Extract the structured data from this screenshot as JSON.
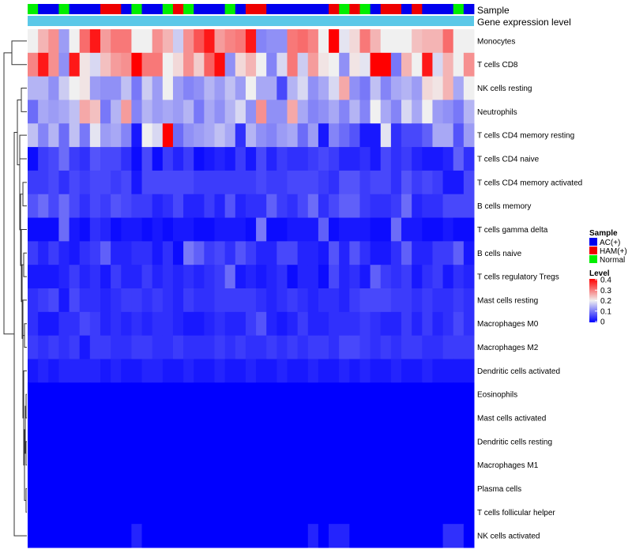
{
  "chart_data": {
    "type": "heatmap",
    "title": "",
    "annotation_tracks": [
      {
        "label": "Sample"
      },
      {
        "label": "Gene expression level"
      }
    ],
    "sample_groups": [
      "Normal",
      "AC(+)",
      "AC(+)",
      "Normal",
      "AC(+)",
      "AC(+)",
      "AC(+)",
      "HAM(+)",
      "HAM(+)",
      "AC(+)",
      "Normal",
      "AC(+)",
      "AC(+)",
      "Normal",
      "HAM(+)",
      "Normal",
      "AC(+)",
      "AC(+)",
      "AC(+)",
      "Normal",
      "AC(+)",
      "HAM(+)",
      "HAM(+)",
      "AC(+)",
      "AC(+)",
      "AC(+)",
      "AC(+)",
      "AC(+)",
      "AC(+)",
      "HAM(+)",
      "Normal",
      "HAM(+)",
      "Normal",
      "AC(+)",
      "HAM(+)",
      "HAM(+)",
      "AC(+)",
      "HAM(+)",
      "AC(+)",
      "AC(+)",
      "AC(+)",
      "Normal",
      "AC(+)"
    ],
    "rows": [
      {
        "label": "Monocytes",
        "values": [
          0.2,
          0.25,
          0.28,
          0.13,
          0.2,
          0.31,
          0.38,
          0.27,
          0.3,
          0.3,
          0.2,
          0.2,
          0.28,
          0.25,
          0.17,
          0.28,
          0.33,
          0.38,
          0.27,
          0.29,
          0.3,
          0.38,
          0.11,
          0.12,
          0.12,
          0.3,
          0.31,
          0.29,
          0.2,
          0.4,
          0.19,
          0.22,
          0.3,
          0.25,
          0.2,
          0.2,
          0.2,
          0.24,
          0.25,
          0.25,
          0.31,
          0.2,
          0.2
        ]
      },
      {
        "label": "T cells CD8",
        "values": [
          0.29,
          0.38,
          0.28,
          0.12,
          0.38,
          0.21,
          0.18,
          0.24,
          0.27,
          0.28,
          0.4,
          0.3,
          0.3,
          0.2,
          0.22,
          0.28,
          0.23,
          0.32,
          0.39,
          0.12,
          0.22,
          0.25,
          0.2,
          0.11,
          0.18,
          0.3,
          0.17,
          0.27,
          0.21,
          0.2,
          0.12,
          0.21,
          0.19,
          0.4,
          0.4,
          0.1,
          0.25,
          0.2,
          0.38,
          0.18,
          0.25,
          0.2,
          0.28
        ]
      },
      {
        "label": "NK cells resting",
        "values": [
          0.15,
          0.15,
          0.12,
          0.17,
          0.2,
          0.21,
          0.13,
          0.12,
          0.12,
          0.16,
          0.1,
          0.17,
          0.13,
          0.2,
          0.13,
          0.11,
          0.12,
          0.15,
          0.13,
          0.16,
          0.13,
          0.2,
          0.14,
          0.14,
          0.06,
          0.15,
          0.18,
          0.12,
          0.14,
          0.18,
          0.26,
          0.12,
          0.1,
          0.16,
          0.11,
          0.14,
          0.15,
          0.13,
          0.22,
          0.21,
          0.25,
          0.14,
          0.2
        ]
      },
      {
        "label": "Neutrophils",
        "values": [
          0.09,
          0.14,
          0.13,
          0.14,
          0.16,
          0.26,
          0.24,
          0.1,
          0.15,
          0.27,
          0.11,
          0.15,
          0.13,
          0.14,
          0.13,
          0.15,
          0.1,
          0.14,
          0.12,
          0.15,
          0.18,
          0.12,
          0.28,
          0.12,
          0.12,
          0.26,
          0.14,
          0.11,
          0.12,
          0.14,
          0.11,
          0.15,
          0.11,
          0.2,
          0.14,
          0.11,
          0.18,
          0.14,
          0.2,
          0.13,
          0.12,
          0.1,
          0.15
        ]
      },
      {
        "label": "T cells CD4 memory resting",
        "values": [
          0.16,
          0.11,
          0.15,
          0.09,
          0.16,
          0.1,
          0.19,
          0.13,
          0.14,
          0.11,
          0.02,
          0.2,
          0.18,
          0.4,
          0.09,
          0.12,
          0.13,
          0.14,
          0.16,
          0.14,
          0.04,
          0.15,
          0.12,
          0.11,
          0.13,
          0.14,
          0.09,
          0.13,
          0.02,
          0.11,
          0.09,
          0.07,
          0.02,
          0.02,
          0.19,
          0.04,
          0.06,
          0.06,
          0.08,
          0.14,
          0.14,
          0.07,
          0.13
        ]
      },
      {
        "label": "T cells CD4 naive",
        "values": [
          0.01,
          0.05,
          0.06,
          0.09,
          0.05,
          0.04,
          0.07,
          0.06,
          0.06,
          0.04,
          0.01,
          0.06,
          0.01,
          0.05,
          0.03,
          0.05,
          0.01,
          0.02,
          0.03,
          0.02,
          0.05,
          0.02,
          0.06,
          0.03,
          0.05,
          0.04,
          0.04,
          0.05,
          0.06,
          0.05,
          0.03,
          0.03,
          0.04,
          0.02,
          0.06,
          0.04,
          0.05,
          0.03,
          0.02,
          0.02,
          0.03,
          0.08,
          0.04
        ]
      },
      {
        "label": "T cells CD4 memory activated",
        "values": [
          0.05,
          0.05,
          0.06,
          0.04,
          0.06,
          0.05,
          0.06,
          0.06,
          0.05,
          0.06,
          0.02,
          0.06,
          0.06,
          0.06,
          0.06,
          0.06,
          0.05,
          0.05,
          0.05,
          0.05,
          0.05,
          0.05,
          0.06,
          0.05,
          0.05,
          0.06,
          0.06,
          0.06,
          0.05,
          0.04,
          0.07,
          0.07,
          0.05,
          0.06,
          0.06,
          0.04,
          0.07,
          0.05,
          0.06,
          0.05,
          0.02,
          0.02,
          0.06
        ]
      },
      {
        "label": "B cells memory",
        "values": [
          0.07,
          0.09,
          0.06,
          0.09,
          0.06,
          0.04,
          0.06,
          0.05,
          0.07,
          0.06,
          0.05,
          0.05,
          0.03,
          0.04,
          0.06,
          0.03,
          0.03,
          0.05,
          0.03,
          0.07,
          0.03,
          0.04,
          0.04,
          0.08,
          0.05,
          0.04,
          0.06,
          0.09,
          0.04,
          0.06,
          0.08,
          0.08,
          0.05,
          0.04,
          0.04,
          0.05,
          0.09,
          0.03,
          0.04,
          0.04,
          0.06,
          0.06,
          0.06
        ]
      },
      {
        "label": "T cells gamma delta",
        "values": [
          0.01,
          0.01,
          0.01,
          0.09,
          0.02,
          0.01,
          0.04,
          0.03,
          0.01,
          0.02,
          0.02,
          0.01,
          0.02,
          0.01,
          0.02,
          0.02,
          0.01,
          0.01,
          0.02,
          0.02,
          0.02,
          0.01,
          0.1,
          0.01,
          0.01,
          0.02,
          0.02,
          0.02,
          0.08,
          0.01,
          0.02,
          0.02,
          0.02,
          0.01,
          0.01,
          0.09,
          0.02,
          0.02,
          0.01,
          0.01,
          0.02,
          0.01,
          0.01
        ]
      },
      {
        "label": "B cells naive",
        "values": [
          0.05,
          0.03,
          0.05,
          0.03,
          0.02,
          0.04,
          0.05,
          0.08,
          0.03,
          0.03,
          0.04,
          0.04,
          0.02,
          0.04,
          0.01,
          0.1,
          0.08,
          0.05,
          0.06,
          0.04,
          0.07,
          0.05,
          0.03,
          0.03,
          0.06,
          0.06,
          0.03,
          0.03,
          0.02,
          0.07,
          0.03,
          0.07,
          0.04,
          0.02,
          0.02,
          0.04,
          0.08,
          0.03,
          0.03,
          0.05,
          0.05,
          0.08,
          0.02
        ]
      },
      {
        "label": "T cells regulatory  Tregs",
        "values": [
          0.02,
          0.02,
          0.02,
          0.03,
          0.05,
          0.03,
          0.04,
          0.02,
          0.05,
          0.03,
          0.03,
          0.05,
          0.03,
          0.04,
          0.03,
          0.04,
          0.03,
          0.04,
          0.05,
          0.09,
          0.02,
          0.03,
          0.02,
          0.03,
          0.04,
          0.01,
          0.03,
          0.03,
          0.01,
          0.06,
          0.03,
          0.04,
          0.02,
          0.08,
          0.05,
          0.04,
          0.05,
          0.02,
          0.04,
          0.05,
          0.02,
          0.04,
          0.03
        ]
      },
      {
        "label": "Mast cells resting",
        "values": [
          0.04,
          0.05,
          0.06,
          0.02,
          0.06,
          0.04,
          0.04,
          0.03,
          0.04,
          0.05,
          0.05,
          0.04,
          0.05,
          0.04,
          0.03,
          0.05,
          0.04,
          0.04,
          0.05,
          0.05,
          0.05,
          0.05,
          0.04,
          0.03,
          0.04,
          0.05,
          0.04,
          0.03,
          0.04,
          0.04,
          0.03,
          0.05,
          0.06,
          0.06,
          0.06,
          0.05,
          0.05,
          0.04,
          0.05,
          0.04,
          0.04,
          0.05,
          0.04
        ]
      },
      {
        "label": "Macrophages M0",
        "values": [
          0.04,
          0.02,
          0.02,
          0.04,
          0.04,
          0.06,
          0.05,
          0.03,
          0.04,
          0.03,
          0.04,
          0.03,
          0.04,
          0.04,
          0.03,
          0.02,
          0.02,
          0.03,
          0.04,
          0.03,
          0.03,
          0.05,
          0.07,
          0.03,
          0.02,
          0.03,
          0.05,
          0.03,
          0.03,
          0.04,
          0.04,
          0.04,
          0.05,
          0.04,
          0.03,
          0.03,
          0.05,
          0.03,
          0.05,
          0.03,
          0.04,
          0.06,
          0.04
        ]
      },
      {
        "label": "Macrophages M2",
        "values": [
          0.05,
          0.04,
          0.05,
          0.04,
          0.05,
          0.02,
          0.05,
          0.05,
          0.04,
          0.04,
          0.05,
          0.05,
          0.04,
          0.04,
          0.05,
          0.04,
          0.04,
          0.04,
          0.05,
          0.04,
          0.05,
          0.04,
          0.04,
          0.05,
          0.04,
          0.05,
          0.04,
          0.05,
          0.05,
          0.04,
          0.06,
          0.06,
          0.05,
          0.04,
          0.05,
          0.04,
          0.05,
          0.05,
          0.04,
          0.04,
          0.05,
          0.05,
          0.05
        ]
      },
      {
        "label": "Dendritic cells activated",
        "values": [
          0.02,
          0.03,
          0.02,
          0.03,
          0.03,
          0.03,
          0.03,
          0.02,
          0.03,
          0.02,
          0.02,
          0.03,
          0.03,
          0.02,
          0.02,
          0.03,
          0.02,
          0.02,
          0.03,
          0.02,
          0.02,
          0.03,
          0.02,
          0.02,
          0.03,
          0.02,
          0.02,
          0.03,
          0.02,
          0.02,
          0.03,
          0.02,
          0.03,
          0.02,
          0.02,
          0.03,
          0.02,
          0.02,
          0.03,
          0.02,
          0.02,
          0.02,
          0.02
        ]
      },
      {
        "label": "Eosinophils",
        "values": [
          0,
          0,
          0,
          0,
          0,
          0,
          0,
          0,
          0,
          0,
          0,
          0,
          0,
          0,
          0,
          0,
          0,
          0,
          0,
          0,
          0,
          0,
          0,
          0,
          0,
          0,
          0,
          0,
          0,
          0,
          0,
          0,
          0,
          0,
          0,
          0,
          0,
          0,
          0,
          0,
          0,
          0,
          0
        ]
      },
      {
        "label": "Mast cells activated",
        "values": [
          0,
          0,
          0,
          0,
          0,
          0,
          0,
          0,
          0,
          0,
          0,
          0,
          0,
          0,
          0,
          0,
          0,
          0,
          0,
          0,
          0,
          0,
          0,
          0,
          0,
          0,
          0,
          0,
          0,
          0,
          0,
          0,
          0,
          0,
          0,
          0,
          0,
          0,
          0,
          0,
          0,
          0,
          0
        ]
      },
      {
        "label": "Dendritic cells resting",
        "values": [
          0,
          0,
          0,
          0,
          0,
          0,
          0,
          0,
          0,
          0,
          0,
          0,
          0,
          0,
          0,
          0,
          0,
          0,
          0,
          0,
          0,
          0,
          0,
          0,
          0,
          0,
          0,
          0,
          0,
          0,
          0,
          0,
          0,
          0,
          0,
          0,
          0,
          0,
          0,
          0,
          0,
          0,
          0
        ]
      },
      {
        "label": "Macrophages M1",
        "values": [
          0,
          0,
          0,
          0,
          0,
          0,
          0,
          0,
          0,
          0,
          0,
          0,
          0,
          0,
          0,
          0,
          0,
          0,
          0,
          0,
          0,
          0,
          0,
          0,
          0,
          0,
          0,
          0,
          0,
          0,
          0,
          0,
          0,
          0,
          0,
          0,
          0,
          0,
          0,
          0,
          0,
          0,
          0
        ]
      },
      {
        "label": "Plasma cells",
        "values": [
          0,
          0,
          0,
          0,
          0,
          0,
          0,
          0,
          0,
          0,
          0,
          0,
          0,
          0,
          0,
          0,
          0,
          0,
          0,
          0,
          0,
          0,
          0,
          0,
          0,
          0,
          0,
          0,
          0,
          0,
          0,
          0,
          0,
          0,
          0,
          0,
          0,
          0,
          0,
          0,
          0,
          0,
          0
        ]
      },
      {
        "label": "T cells follicular helper",
        "values": [
          0,
          0,
          0,
          0,
          0,
          0,
          0,
          0,
          0,
          0,
          0,
          0,
          0,
          0,
          0,
          0,
          0,
          0,
          0,
          0,
          0,
          0,
          0,
          0,
          0,
          0,
          0,
          0,
          0,
          0,
          0,
          0,
          0,
          0,
          0,
          0,
          0,
          0,
          0,
          0,
          0,
          0,
          0
        ]
      },
      {
        "label": "NK cells activated",
        "values": [
          0,
          0,
          0,
          0,
          0,
          0,
          0,
          0,
          0,
          0,
          0.03,
          0,
          0,
          0,
          0,
          0,
          0,
          0,
          0,
          0,
          0,
          0,
          0,
          0,
          0,
          0,
          0,
          0.03,
          0,
          0.03,
          0.03,
          0,
          0,
          0,
          0,
          0,
          0,
          0,
          0,
          0,
          0.04,
          0.04,
          0
        ]
      }
    ],
    "legend": {
      "sample_title": "Sample",
      "sample_entries": [
        {
          "label": "AC(+)",
          "color": "#0000ee"
        },
        {
          "label": "HAM(+)",
          "color": "#ee0000"
        },
        {
          "label": "Normal",
          "color": "#00ee00"
        }
      ],
      "level_title": "Level",
      "level_ticks": [
        "0.4",
        "0.3",
        "0.2",
        "0.1",
        "0"
      ]
    },
    "color_scale": {
      "min": 0,
      "max": 0.4,
      "low": "#0000ff",
      "mid": "#f0f0f0",
      "high": "#ff0000"
    },
    "expression_track_color": "#5bc8e8"
  }
}
